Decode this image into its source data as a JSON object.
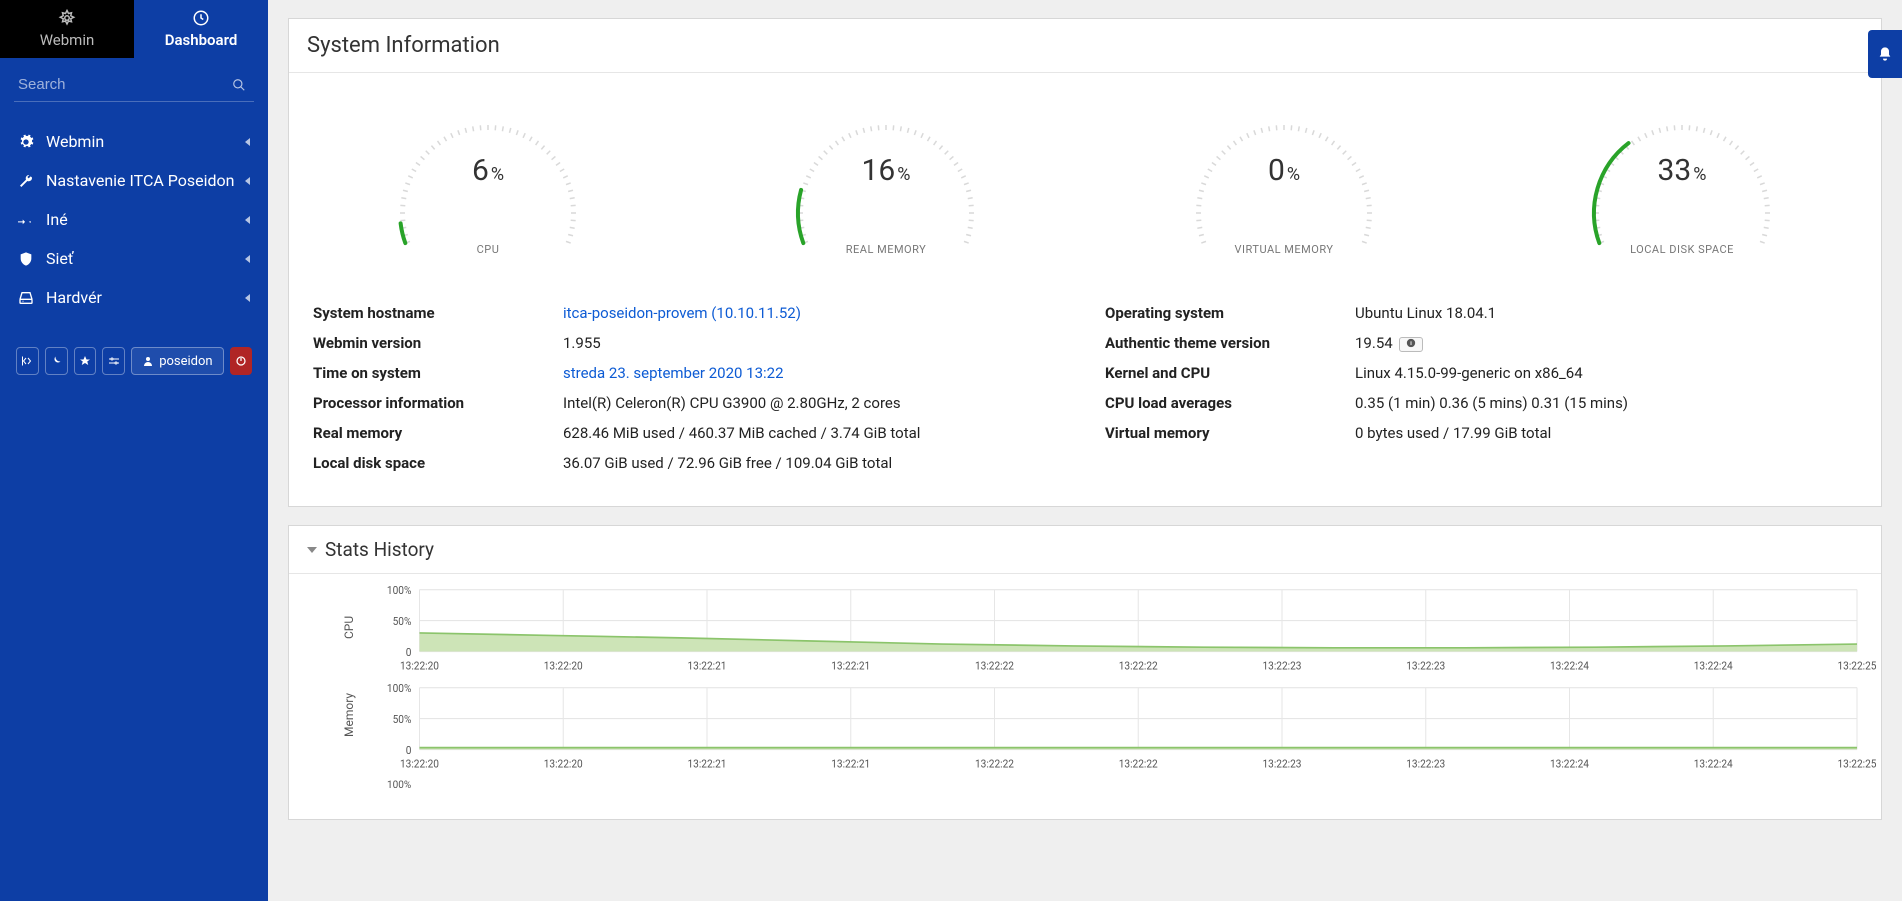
{
  "colors": {
    "sidebar_bg": "#0d3ea5",
    "tab_inactive_bg": "#000000",
    "gauge_arc": "#29a329",
    "gauge_tick": "#d9d9d9",
    "chart_fill": "#cde4b7",
    "chart_stroke": "#8bc46b",
    "chart_grid": "#e6e6e6",
    "link": "#0d5bd4"
  },
  "tabs": {
    "webmin": "Webmin",
    "dashboard": "Dashboard"
  },
  "search": {
    "placeholder": "Search"
  },
  "nav": [
    {
      "icon": "gear",
      "label": "Webmin"
    },
    {
      "icon": "wrench",
      "label": "Nastavenie ITCA Poseidon"
    },
    {
      "icon": "pin",
      "label": "Iné"
    },
    {
      "icon": "shield",
      "label": "Sieť"
    },
    {
      "icon": "drive",
      "label": "Hardvér"
    }
  ],
  "user": "poseidon",
  "page_title": "System Information",
  "gauges": [
    {
      "value": 6,
      "label": "CPU"
    },
    {
      "value": 16,
      "label": "REAL MEMORY"
    },
    {
      "value": 0,
      "label": "VIRTUAL MEMORY"
    },
    {
      "value": 33,
      "label": "LOCAL DISK SPACE"
    }
  ],
  "info_left": [
    {
      "label": "System hostname",
      "value": "itca-poseidon-provem (10.10.11.52)",
      "link": true
    },
    {
      "label": "Webmin version",
      "value": "1.955"
    },
    {
      "label": "Time on system",
      "value": "streda 23. september 2020 13:22",
      "link": true
    },
    {
      "label": "Processor information",
      "value": "Intel(R) Celeron(R) CPU G3900 @ 2.80GHz, 2 cores"
    },
    {
      "label": "Real memory",
      "value": "628.46 MiB used / 460.37 MiB cached / 3.74 GiB total"
    },
    {
      "label": "Local disk space",
      "value": "36.07 GiB used / 72.96 GiB free / 109.04 GiB total"
    }
  ],
  "info_right": [
    {
      "label": "Operating system",
      "value": "Ubuntu Linux 18.04.1"
    },
    {
      "label": "Authentic theme version",
      "value": "19.54",
      "badge": true
    },
    {
      "label": "Kernel and CPU",
      "value": "Linux 4.15.0-99-generic on x86_64"
    },
    {
      "label": "CPU load averages",
      "value": "0.35 (1 min) 0.36 (5 mins) 0.31 (15 mins)"
    },
    {
      "label": "Virtual memory",
      "value": "0 bytes used / 17.99 GiB total"
    }
  ],
  "stats_title": "Stats History",
  "charts": {
    "yticks": [
      "100%",
      "50%",
      "0"
    ],
    "xticks": [
      "13:22:20",
      "13:22:20",
      "13:22:21",
      "13:22:21",
      "13:22:22",
      "13:22:22",
      "13:22:23",
      "13:22:23",
      "13:22:24",
      "13:22:24",
      "13:22:25"
    ],
    "rows": [
      {
        "label": "CPU",
        "values": [
          30,
          26,
          22,
          17,
          12,
          9,
          7,
          6,
          6,
          7,
          9,
          12
        ]
      },
      {
        "label": "Memory",
        "values": [
          3,
          3,
          3,
          3,
          3,
          3,
          3,
          3,
          3,
          3,
          3,
          3
        ]
      }
    ],
    "extra_ytick": "100%"
  }
}
